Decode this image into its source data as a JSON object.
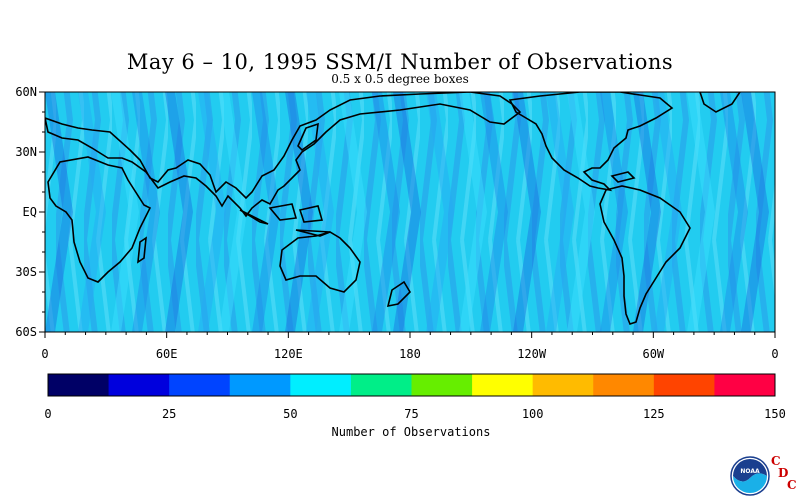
{
  "title": "May 6 – 10, 1995 SSM/I Number of Observations",
  "subtitle": "0.5 x 0.5 degree boxes",
  "map": {
    "lon_labels": [
      "0",
      "60E",
      "120E",
      "180",
      "120W",
      "60W",
      "0"
    ],
    "lat_labels": [
      "60N",
      "30N",
      "EQ",
      "30S",
      "60S"
    ],
    "lat_range": [
      -60,
      60
    ],
    "lon_range": [
      0,
      360
    ]
  },
  "colorbar": {
    "label": "Number of Observations",
    "ticks": [
      "0",
      "25",
      "50",
      "75",
      "100",
      "125",
      "150"
    ],
    "range": [
      0,
      150
    ],
    "colors": [
      "#000066",
      "#0000dd",
      "#0044ff",
      "#0099ff",
      "#00eeff",
      "#00ee88",
      "#66ee00",
      "#ffff00",
      "#ffbb00",
      "#ff8800",
      "#ff4400",
      "#ff0044"
    ]
  },
  "logo": {
    "agency": "NOAA",
    "letters": [
      "C",
      "D",
      "C"
    ]
  }
}
